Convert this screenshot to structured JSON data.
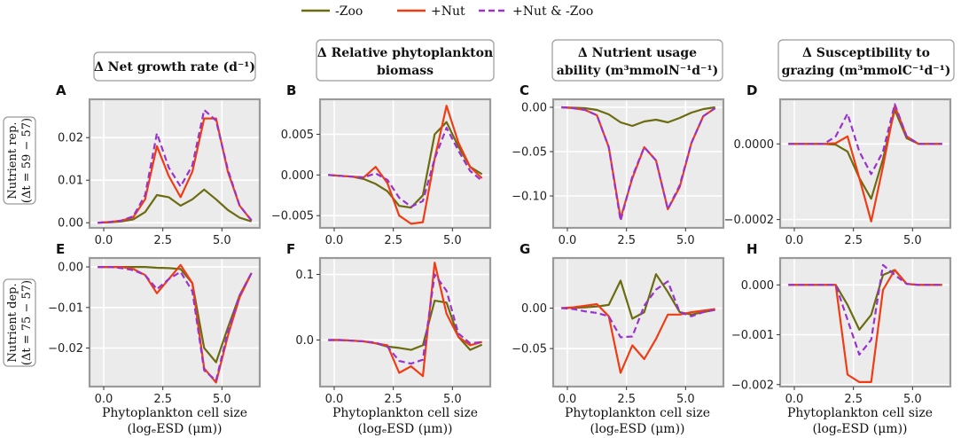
{
  "legend": {
    "zoo": "-Zoo",
    "nut": "+Nut",
    "both": "+Nut & -Zoo"
  },
  "colors": {
    "zoo": "#6b6b0f",
    "nut": "#f03c14",
    "both": "#9933cc",
    "plot_bg": "#ebebeb",
    "grid": "#ffffff",
    "frame": "#9a9a9a"
  },
  "column_titles": [
    [
      "Δ Net growth rate (d⁻¹)"
    ],
    [
      "Δ Relative phytoplankton",
      "biomass"
    ],
    [
      "Δ Nutrient usage",
      "ability (m³mmolN⁻¹d⁻¹)"
    ],
    [
      "Δ Susceptibility to",
      "grazing (m³mmolC⁻¹d⁻¹)"
    ]
  ],
  "row_labels": [
    [
      "Nutrient rep.",
      "(Δt = 59 − 57)"
    ],
    [
      "Nutrient dep.",
      "(Δt = 75 − 57)"
    ]
  ],
  "x_axis": {
    "label_line1": "Phytoplankton cell size",
    "label_line2": "(logₑESD (μm))",
    "ticks": [
      0,
      2.5,
      5
    ],
    "tick_labels": [
      "0.0",
      "2.5",
      "5.0"
    ],
    "xlim": [
      -0.6,
      6.6
    ]
  },
  "chart_data": [
    {
      "letter": "A",
      "type": "line",
      "ylim": [
        -0.0012,
        0.029
      ],
      "yticks": [
        0,
        0.01,
        0.02
      ],
      "ytick_labels": [
        "0.00",
        "0.01",
        "0.02"
      ],
      "x": [
        -0.25,
        0.25,
        0.75,
        1.25,
        1.75,
        2.25,
        2.75,
        3.25,
        3.75,
        4.25,
        4.75,
        5.25,
        5.75,
        6.25
      ],
      "series": [
        {
          "name": "-Zoo",
          "key": "zoo",
          "values": [
            0,
            0.0001,
            0.0003,
            0.0008,
            0.0025,
            0.0065,
            0.006,
            0.004,
            0.0055,
            0.0078,
            0.0055,
            0.003,
            0.0012,
            0.0003
          ]
        },
        {
          "name": "+Nut",
          "key": "nut",
          "values": [
            0,
            0.0002,
            0.0005,
            0.0013,
            0.0055,
            0.018,
            0.011,
            0.006,
            0.012,
            0.0245,
            0.0245,
            0.012,
            0.004,
            0.0005
          ]
        },
        {
          "name": "+Nut & -Zoo",
          "key": "both",
          "values": [
            0,
            0.0002,
            0.0005,
            0.0015,
            0.0065,
            0.021,
            0.013,
            0.0085,
            0.0135,
            0.0265,
            0.024,
            0.0125,
            0.004,
            0.0006
          ]
        }
      ]
    },
    {
      "letter": "B",
      "type": "line",
      "ylim": [
        -0.0065,
        0.0093
      ],
      "yticks": [
        -0.005,
        0,
        0.005
      ],
      "ytick_labels": [
        "−0.005",
        "0.000",
        "0.005"
      ],
      "x": [
        -0.25,
        0.25,
        0.75,
        1.25,
        1.75,
        2.25,
        2.75,
        3.25,
        3.75,
        4.25,
        4.75,
        5.25,
        5.75,
        6.25
      ],
      "series": [
        {
          "name": "-Zoo",
          "key": "zoo",
          "values": [
            0,
            -0.0001,
            -0.0002,
            -0.0005,
            -0.0011,
            -0.002,
            -0.0038,
            -0.004,
            -0.0025,
            0.005,
            0.0065,
            0.0035,
            0.001,
            0.0001
          ]
        },
        {
          "name": "+Nut",
          "key": "nut",
          "values": [
            0,
            -0.0001,
            -0.0002,
            -0.0003,
            0.001,
            -0.001,
            -0.005,
            -0.006,
            -0.0058,
            0.002,
            0.0085,
            0.004,
            0.001,
            -0.0004
          ]
        },
        {
          "name": "+Nut & -Zoo",
          "key": "both",
          "values": [
            0,
            -0.0001,
            -0.0002,
            -0.0003,
            0.0002,
            -0.0006,
            -0.0028,
            -0.0039,
            -0.0032,
            0.002,
            0.0058,
            0.003,
            0.0005,
            -0.0007
          ]
        }
      ]
    },
    {
      "letter": "C",
      "type": "line",
      "ylim": [
        -0.136,
        0.009
      ],
      "yticks": [
        0,
        -0.05,
        -0.1
      ],
      "ytick_labels": [
        "0.00",
        "−0.05",
        "−0.10"
      ],
      "x": [
        -0.25,
        0.25,
        0.75,
        1.25,
        1.75,
        2.25,
        2.75,
        3.25,
        3.75,
        4.25,
        4.75,
        5.25,
        5.75,
        6.25
      ],
      "series": [
        {
          "name": "-Zoo",
          "key": "zoo",
          "values": [
            0,
            -0.0005,
            -0.001,
            -0.003,
            -0.008,
            -0.017,
            -0.021,
            -0.016,
            -0.014,
            -0.017,
            -0.012,
            -0.006,
            -0.002,
            0
          ]
        },
        {
          "name": "+Nut",
          "key": "nut",
          "values": [
            0,
            -0.001,
            -0.003,
            -0.009,
            -0.045,
            -0.125,
            -0.08,
            -0.045,
            -0.06,
            -0.115,
            -0.09,
            -0.04,
            -0.01,
            -0.001
          ]
        },
        {
          "name": "+Nut & -Zoo",
          "key": "both",
          "values": [
            0,
            -0.001,
            -0.003,
            -0.009,
            -0.045,
            -0.128,
            -0.078,
            -0.045,
            -0.06,
            -0.115,
            -0.088,
            -0.04,
            -0.01,
            -0.001
          ]
        }
      ]
    },
    {
      "letter": "D",
      "type": "line",
      "ylim": [
        -0.000222,
        0.000118
      ],
      "yticks": [
        0,
        -0.0002
      ],
      "ytick_labels": [
        "0.0000",
        "−0.0002"
      ],
      "x": [
        -0.25,
        0.25,
        0.75,
        1.25,
        1.75,
        2.25,
        2.75,
        3.25,
        3.75,
        4.25,
        4.75,
        5.25,
        5.75,
        6.25
      ],
      "series": [
        {
          "name": "-Zoo",
          "key": "zoo",
          "values": [
            0,
            0,
            0,
            0,
            -2e-06,
            -2e-05,
            -9e-05,
            -0.000145,
            -4e-05,
            9e-05,
            1.5e-05,
            0,
            0,
            0
          ]
        },
        {
          "name": "+Nut",
          "key": "nut",
          "values": [
            0,
            0,
            0,
            0,
            2e-06,
            2e-05,
            -9e-05,
            -0.000205,
            -6e-05,
            0.0001,
            2e-05,
            0,
            0,
            0
          ]
        },
        {
          "name": "+Nut & -Zoo",
          "key": "both",
          "values": [
            0,
            0,
            0,
            0,
            2e-05,
            8e-05,
            -2e-05,
            -8e-05,
            -2e-05,
            0.000105,
            2e-05,
            0,
            0,
            0
          ]
        }
      ]
    },
    {
      "letter": "E",
      "type": "line",
      "ylim": [
        -0.0295,
        0.0022
      ],
      "yticks": [
        0,
        -0.01,
        -0.02
      ],
      "ytick_labels": [
        "0.00",
        "−0.01",
        "−0.02"
      ],
      "x": [
        -0.25,
        0.25,
        0.75,
        1.25,
        1.75,
        2.25,
        2.75,
        3.25,
        3.75,
        4.25,
        4.75,
        5.25,
        5.75,
        6.25
      ],
      "series": [
        {
          "name": "-Zoo",
          "key": "zoo",
          "values": [
            0,
            0,
            0,
            0,
            0,
            -0.0002,
            -0.0003,
            -0.0005,
            -0.004,
            -0.02,
            -0.0235,
            -0.015,
            -0.007,
            -0.0015
          ]
        },
        {
          "name": "+Nut",
          "key": "nut",
          "values": [
            0,
            0,
            0,
            -0.0005,
            -0.002,
            -0.0065,
            -0.003,
            0.0005,
            -0.004,
            -0.025,
            -0.0285,
            -0.017,
            -0.0075,
            -0.0015
          ]
        },
        {
          "name": "+Nut & -Zoo",
          "key": "both",
          "values": [
            0,
            0,
            -0.0003,
            -0.0008,
            -0.002,
            -0.0055,
            -0.003,
            -0.0012,
            -0.006,
            -0.0255,
            -0.028,
            -0.016,
            -0.007,
            -0.0015
          ]
        }
      ]
    },
    {
      "letter": "F",
      "type": "line",
      "ylim": [
        -0.071,
        0.125
      ],
      "yticks": [
        0,
        0.1
      ],
      "ytick_labels": [
        "0.0",
        "0.1"
      ],
      "x": [
        -0.25,
        0.25,
        0.75,
        1.25,
        1.75,
        2.25,
        2.75,
        3.25,
        3.75,
        4.25,
        4.75,
        5.25,
        5.75,
        6.25
      ],
      "series": [
        {
          "name": "-Zoo",
          "key": "zoo",
          "values": [
            0,
            0,
            -0.001,
            -0.002,
            -0.005,
            -0.01,
            -0.012,
            -0.015,
            -0.008,
            0.06,
            0.057,
            0.005,
            -0.015,
            -0.007
          ]
        },
        {
          "name": "+Nut",
          "key": "nut",
          "values": [
            0,
            0,
            -0.001,
            -0.002,
            -0.005,
            -0.008,
            -0.05,
            -0.04,
            -0.055,
            0.118,
            0.04,
            0.005,
            -0.008,
            -0.003
          ]
        },
        {
          "name": "+Nut & -Zoo",
          "key": "both",
          "values": [
            0,
            0,
            -0.001,
            -0.002,
            -0.004,
            -0.01,
            -0.032,
            -0.036,
            -0.03,
            0.1,
            0.075,
            0.01,
            -0.005,
            -0.003
          ]
        }
      ]
    },
    {
      "letter": "G",
      "type": "line",
      "ylim": [
        -0.097,
        0.062
      ],
      "yticks": [
        0,
        -0.05
      ],
      "ytick_labels": [
        "0.00",
        "−0.05"
      ],
      "x": [
        -0.25,
        0.25,
        0.75,
        1.25,
        1.75,
        2.25,
        2.75,
        3.25,
        3.75,
        4.25,
        4.75,
        5.25,
        5.75,
        6.25
      ],
      "series": [
        {
          "name": "-Zoo",
          "key": "zoo",
          "values": [
            0,
            0.0005,
            0.001,
            0.002,
            0.004,
            0.034,
            -0.013,
            -0.005,
            0.042,
            0.02,
            -0.005,
            -0.008,
            -0.005,
            -0.002
          ]
        },
        {
          "name": "+Nut",
          "key": "nut",
          "values": [
            0,
            0.001,
            0.003,
            0.005,
            -0.01,
            -0.08,
            -0.046,
            -0.063,
            -0.038,
            -0.008,
            -0.008,
            -0.005,
            -0.003,
            -0.001
          ]
        },
        {
          "name": "+Nut & -Zoo",
          "key": "both",
          "values": [
            0,
            -0.001,
            -0.004,
            -0.006,
            -0.01,
            -0.036,
            -0.035,
            0.003,
            0.023,
            0.033,
            -0.005,
            -0.01,
            -0.005,
            -0.002
          ]
        }
      ]
    },
    {
      "letter": "H",
      "type": "line",
      "ylim": [
        -0.00204,
        0.00054
      ],
      "yticks": [
        0,
        -0.001,
        -0.002
      ],
      "ytick_labels": [
        "0.000",
        "−0.001",
        "−0.002"
      ],
      "x": [
        -0.25,
        0.25,
        0.75,
        1.25,
        1.75,
        2.25,
        2.75,
        3.25,
        3.75,
        4.25,
        4.75,
        5.25,
        5.75,
        6.25
      ],
      "series": [
        {
          "name": "-Zoo",
          "key": "zoo",
          "values": [
            0,
            0,
            0,
            0,
            0,
            -0.0004,
            -0.0009,
            -0.0006,
            0.0002,
            0.0003,
            2e-05,
            0,
            0,
            0
          ]
        },
        {
          "name": "+Nut",
          "key": "nut",
          "values": [
            0,
            0,
            0,
            0,
            0,
            -0.0018,
            -0.00195,
            -0.00195,
            -0.0001,
            0.0003,
            2e-05,
            0,
            0,
            0
          ]
        },
        {
          "name": "+Nut & -Zoo",
          "key": "both",
          "values": [
            0,
            0,
            0,
            0,
            0,
            -0.0007,
            -0.0014,
            -0.0011,
            0.0004,
            0.0002,
            2e-05,
            0,
            0,
            0
          ]
        }
      ]
    }
  ]
}
